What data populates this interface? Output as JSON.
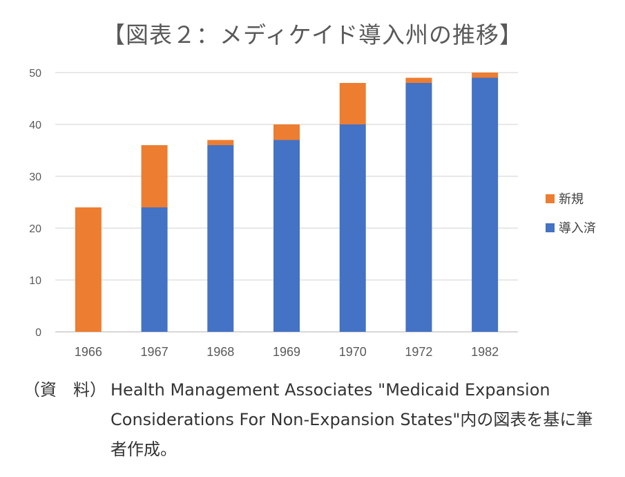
{
  "chart_data": {
    "type": "bar",
    "stacked": true,
    "title": "【図表２：メディケイド導入州の推移】",
    "categories": [
      "1966",
      "1967",
      "1968",
      "1969",
      "1970",
      "1972",
      "1982"
    ],
    "series": [
      {
        "name": "導入済",
        "color": "#4472C4",
        "values": [
          0,
          24,
          36,
          37,
          40,
          48,
          49
        ]
      },
      {
        "name": "新規",
        "color": "#ED7D31",
        "values": [
          24,
          12,
          1,
          3,
          8,
          1,
          1
        ]
      }
    ],
    "ylim": [
      0,
      50
    ],
    "yticks": [
      0,
      10,
      20,
      30,
      40,
      50
    ],
    "grid": true,
    "legend_position": "right"
  },
  "source": {
    "label": "（資　料）",
    "text": "Health Management Associates \"Medicaid Expansion Considerations For Non-Expansion States\"内の図表を基に筆者作成。"
  }
}
